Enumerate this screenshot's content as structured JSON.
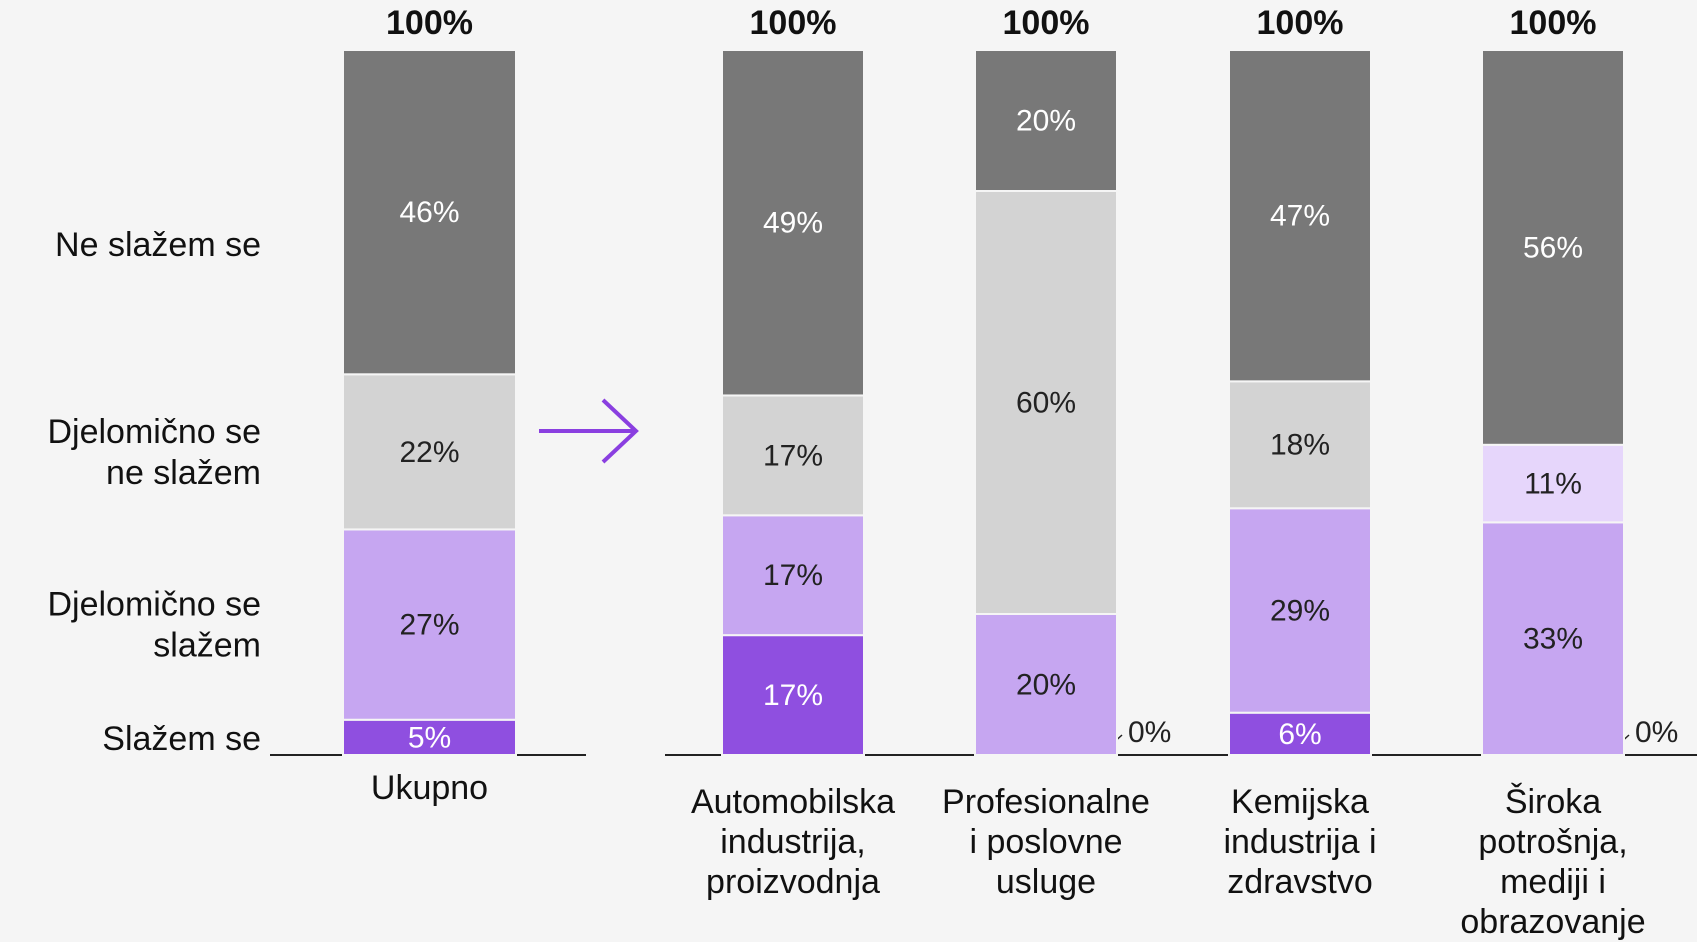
{
  "chart_data": {
    "type": "stacked_bar",
    "categories": [
      "Ukupno",
      "Automobilska\nindustrija,\nproizvodnja",
      "Profesionalne\ni poslovne\nusluge",
      "Kemijska\nindustrija i\nzdravstvo",
      "Široka\npotrošnja,\nmediji i\nobrazovanje"
    ],
    "ylim": [
      0,
      100
    ],
    "totals": [
      100,
      100,
      100,
      100,
      100
    ],
    "total_labels": [
      "100%",
      "100%",
      "100%",
      "100%",
      "100%"
    ],
    "series": [
      {
        "name": "Slažem se",
        "color": "#8f4fe0",
        "label_color": "#ffffff",
        "values": [
          5,
          17,
          0,
          6,
          0
        ],
        "value_labels": [
          "5%",
          "17%",
          "0%",
          "6%",
          "0%"
        ]
      },
      {
        "name": "Djelomično se\nslažem",
        "color": "#c6a6f1",
        "label_color": "#222222",
        "values": [
          27,
          17,
          20,
          29,
          33
        ],
        "value_labels": [
          "27%",
          "17%",
          "20%",
          "29%",
          "33%"
        ]
      },
      {
        "name": "Djelomično se\nne slažem",
        "color": "#d3d3d3",
        "colors": [
          "#d3d3d3",
          "#d3d3d3",
          "#d3d3d3",
          "#d3d3d3",
          "#e6d6fb"
        ],
        "label_color": "#222222",
        "values": [
          22,
          17,
          60,
          18,
          11
        ],
        "value_labels": [
          "22%",
          "17%",
          "60%",
          "18%",
          "11%"
        ]
      },
      {
        "name": "Ne slažem se",
        "color": "#787878",
        "label_color": "#ffffff",
        "values": [
          46,
          49,
          20,
          47,
          56
        ],
        "value_labels": [
          "46%",
          "49%",
          "20%",
          "47%",
          "56%"
        ]
      }
    ]
  }
}
